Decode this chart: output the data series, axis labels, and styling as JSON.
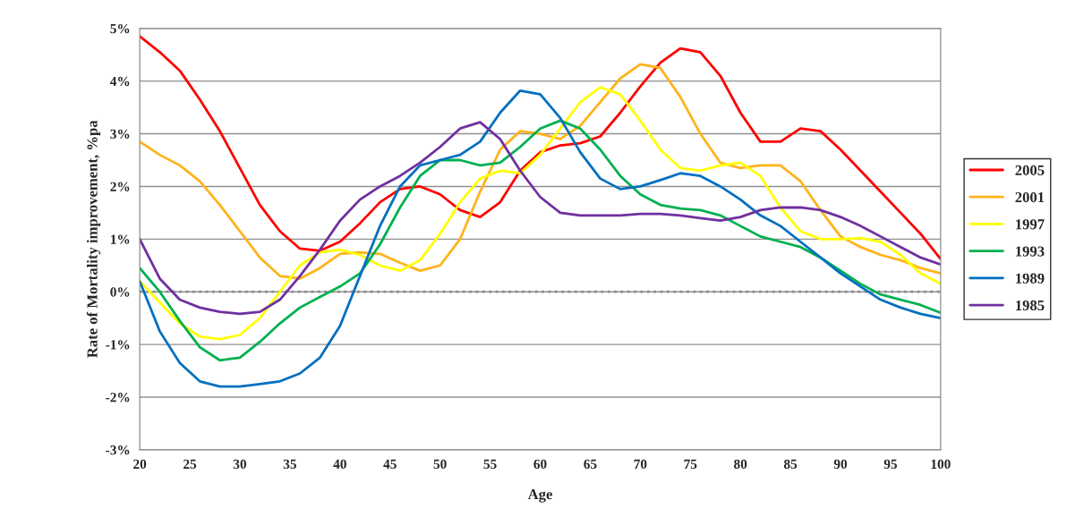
{
  "chart_data": {
    "type": "line",
    "xlabel": "Age",
    "ylabel": "Rate of Mortality improvement, %pa",
    "x": [
      20,
      22,
      24,
      26,
      28,
      30,
      32,
      34,
      36,
      38,
      40,
      42,
      44,
      46,
      48,
      50,
      52,
      54,
      56,
      58,
      60,
      62,
      64,
      66,
      68,
      70,
      72,
      74,
      76,
      78,
      80,
      82,
      84,
      86,
      88,
      90,
      92,
      94,
      96,
      98,
      100
    ],
    "series": [
      {
        "name": "2005",
        "color": "#ff0000",
        "values": [
          4.85,
          4.55,
          4.2,
          3.65,
          3.05,
          2.35,
          1.65,
          1.15,
          0.82,
          0.78,
          0.95,
          1.3,
          1.7,
          1.95,
          2.0,
          1.85,
          1.55,
          1.42,
          1.7,
          2.3,
          2.65,
          2.78,
          2.82,
          2.95,
          3.4,
          3.9,
          4.35,
          4.62,
          4.55,
          4.1,
          3.4,
          2.85,
          2.85,
          3.1,
          3.05,
          2.7,
          2.3,
          1.9,
          1.5,
          1.1,
          0.62
        ]
      },
      {
        "name": "2001",
        "color": "#ffb31a",
        "values": [
          2.85,
          2.6,
          2.4,
          2.1,
          1.65,
          1.15,
          0.65,
          0.3,
          0.25,
          0.45,
          0.72,
          0.75,
          0.72,
          0.55,
          0.4,
          0.5,
          1.0,
          1.9,
          2.7,
          3.05,
          3.0,
          2.9,
          3.15,
          3.6,
          4.05,
          4.32,
          4.25,
          3.7,
          3.0,
          2.45,
          2.35,
          2.4,
          2.4,
          2.1,
          1.55,
          1.05,
          0.85,
          0.7,
          0.6,
          0.45,
          0.35
        ]
      },
      {
        "name": "1997",
        "color": "#ffff00",
        "values": [
          0.2,
          -0.2,
          -0.6,
          -0.85,
          -0.9,
          -0.82,
          -0.5,
          0.0,
          0.5,
          0.75,
          0.8,
          0.7,
          0.5,
          0.4,
          0.6,
          1.1,
          1.7,
          2.15,
          2.3,
          2.25,
          2.6,
          3.1,
          3.6,
          3.88,
          3.75,
          3.25,
          2.7,
          2.35,
          2.3,
          2.4,
          2.45,
          2.2,
          1.6,
          1.15,
          1.0,
          1.0,
          1.02,
          0.95,
          0.7,
          0.35,
          0.15
        ]
      },
      {
        "name": "1993",
        "color": "#00b050",
        "values": [
          0.45,
          0.0,
          -0.55,
          -1.05,
          -1.3,
          -1.25,
          -0.95,
          -0.6,
          -0.3,
          -0.1,
          0.1,
          0.35,
          0.9,
          1.6,
          2.2,
          2.5,
          2.5,
          2.4,
          2.45,
          2.75,
          3.1,
          3.25,
          3.1,
          2.7,
          2.2,
          1.85,
          1.65,
          1.58,
          1.55,
          1.45,
          1.25,
          1.05,
          0.95,
          0.85,
          0.65,
          0.4,
          0.15,
          -0.05,
          -0.15,
          -0.25,
          -0.4
        ]
      },
      {
        "name": "1989",
        "color": "#0070c0",
        "values": [
          0.2,
          -0.75,
          -1.35,
          -1.7,
          -1.8,
          -1.8,
          -1.75,
          -1.7,
          -1.55,
          -1.25,
          -0.65,
          0.3,
          1.25,
          2.0,
          2.4,
          2.5,
          2.6,
          2.85,
          3.4,
          3.82,
          3.75,
          3.3,
          2.65,
          2.15,
          1.95,
          2.0,
          2.12,
          2.25,
          2.2,
          2.0,
          1.75,
          1.45,
          1.25,
          0.95,
          0.65,
          0.35,
          0.1,
          -0.15,
          -0.3,
          -0.42,
          -0.5
        ]
      },
      {
        "name": "1985",
        "color": "#7030a0",
        "values": [
          1.0,
          0.25,
          -0.15,
          -0.3,
          -0.38,
          -0.42,
          -0.38,
          -0.15,
          0.3,
          0.8,
          1.35,
          1.75,
          2.0,
          2.2,
          2.45,
          2.75,
          3.1,
          3.22,
          2.9,
          2.3,
          1.8,
          1.5,
          1.45,
          1.45,
          1.45,
          1.48,
          1.48,
          1.45,
          1.4,
          1.35,
          1.42,
          1.55,
          1.6,
          1.6,
          1.55,
          1.42,
          1.25,
          1.05,
          0.85,
          0.65,
          0.52
        ]
      }
    ],
    "xlim": [
      20,
      100
    ],
    "xticks": [
      20,
      25,
      30,
      35,
      40,
      45,
      50,
      55,
      60,
      65,
      70,
      75,
      80,
      85,
      90,
      95,
      100
    ],
    "ylim": [
      -3,
      5
    ],
    "yticks": [
      {
        "value": -3,
        "label": "-3%"
      },
      {
        "value": -2,
        "label": "-2%"
      },
      {
        "value": -1,
        "label": "-1%"
      },
      {
        "value": 0,
        "label": "0%"
      },
      {
        "value": 1,
        "label": "1%"
      },
      {
        "value": 2,
        "label": "2%"
      },
      {
        "value": 3,
        "label": "3%"
      },
      {
        "value": 4,
        "label": "4%"
      },
      {
        "value": 5,
        "label": "5%"
      }
    ],
    "ref_lines": [
      {
        "axis": "y",
        "value": 0,
        "color": "#808080",
        "line_style": "dotted"
      }
    ],
    "grid": "y",
    "legend": "right",
    "marker": "none",
    "line_style": "solid"
  }
}
